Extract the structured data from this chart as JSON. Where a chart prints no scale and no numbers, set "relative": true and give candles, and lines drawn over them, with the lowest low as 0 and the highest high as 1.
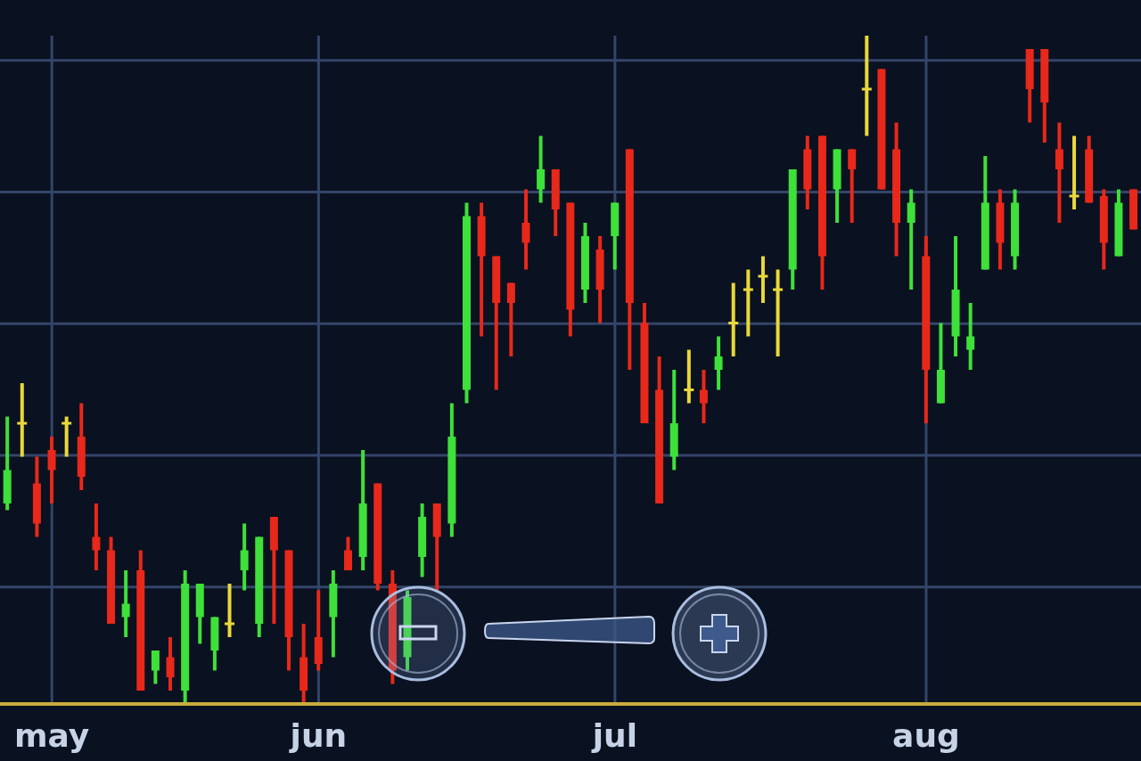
{
  "chart_data": {
    "type": "candlestick",
    "relative": true,
    "grid": true,
    "categories": [
      null,
      null,
      null,
      "may",
      null,
      null,
      null,
      null,
      null,
      null,
      null,
      null,
      null,
      null,
      null,
      null,
      null,
      null,
      null,
      null,
      null,
      "jun",
      null,
      null,
      null,
      null,
      null,
      null,
      null,
      null,
      null,
      null,
      null,
      null,
      null,
      null,
      null,
      null,
      null,
      null,
      null,
      "jul",
      null,
      null,
      null,
      null,
      null,
      null,
      null,
      null,
      null,
      null,
      null,
      null,
      null,
      null,
      null,
      null,
      null,
      null,
      null,
      null,
      "aug",
      null,
      null,
      null,
      null,
      null,
      null,
      null,
      null,
      null,
      null,
      null,
      null,
      null,
      null
    ],
    "ohlc": [
      [
        0.3,
        0.43,
        0.29,
        0.35
      ],
      [
        0.42,
        0.48,
        0.37,
        0.42
      ],
      [
        0.33,
        0.37,
        0.25,
        0.27
      ],
      [
        0.38,
        0.4,
        0.3,
        0.35
      ],
      [
        0.42,
        0.43,
        0.37,
        0.42
      ],
      [
        0.4,
        0.45,
        0.32,
        0.34
      ],
      [
        0.25,
        0.3,
        0.2,
        0.23
      ],
      [
        0.23,
        0.25,
        0.12,
        0.12
      ],
      [
        0.13,
        0.2,
        0.1,
        0.15
      ],
      [
        0.2,
        0.23,
        0.02,
        0.02
      ],
      [
        0.05,
        0.08,
        0.03,
        0.08
      ],
      [
        0.07,
        0.1,
        0.02,
        0.04
      ],
      [
        0.02,
        0.2,
        0,
        0.18
      ],
      [
        0.13,
        0.18,
        0.09,
        0.18
      ],
      [
        0.08,
        0.13,
        0.05,
        0.13
      ],
      [
        0.12,
        0.18,
        0.1,
        0.12
      ],
      [
        0.2,
        0.27,
        0.17,
        0.23
      ],
      [
        0.12,
        0.25,
        0.1,
        0.25
      ],
      [
        0.28,
        0.28,
        0.12,
        0.23
      ],
      [
        0.23,
        0.23,
        0.05,
        0.1
      ],
      [
        0.07,
        0.12,
        0,
        0.02
      ],
      [
        0.1,
        0.17,
        0.05,
        0.06
      ],
      [
        0.13,
        0.2,
        0.07,
        0.18
      ],
      [
        0.23,
        0.25,
        0.2,
        0.2
      ],
      [
        0.22,
        0.38,
        0.2,
        0.3
      ],
      [
        0.33,
        0.33,
        0.17,
        0.18
      ],
      [
        0.18,
        0.2,
        0.03,
        0.05
      ],
      [
        0.07,
        0.17,
        0.05,
        0.16
      ],
      [
        0.22,
        0.3,
        0.19,
        0.28
      ],
      [
        0.3,
        0.3,
        0.17,
        0.25
      ],
      [
        0.27,
        0.45,
        0.25,
        0.4
      ],
      [
        0.47,
        0.75,
        0.45,
        0.73
      ],
      [
        0.73,
        0.75,
        0.55,
        0.67
      ],
      [
        0.67,
        0.67,
        0.47,
        0.6
      ],
      [
        0.63,
        0.63,
        0.52,
        0.6
      ],
      [
        0.72,
        0.77,
        0.65,
        0.69
      ],
      [
        0.77,
        0.85,
        0.75,
        0.8
      ],
      [
        0.8,
        0.8,
        0.7,
        0.74
      ],
      [
        0.75,
        0.75,
        0.55,
        0.59
      ],
      [
        0.62,
        0.72,
        0.6,
        0.7
      ],
      [
        0.68,
        0.7,
        0.57,
        0.62
      ],
      [
        0.7,
        0.75,
        0.65,
        0.75
      ],
      [
        0.83,
        0.83,
        0.5,
        0.6
      ],
      [
        0.57,
        0.6,
        0.42,
        0.42
      ],
      [
        0.47,
        0.52,
        0.3,
        0.3
      ],
      [
        0.37,
        0.5,
        0.35,
        0.42
      ],
      [
        0.47,
        0.53,
        0.45,
        0.47
      ],
      [
        0.47,
        0.5,
        0.42,
        0.45
      ],
      [
        0.5,
        0.55,
        0.47,
        0.52
      ],
      [
        0.57,
        0.63,
        0.52,
        0.57
      ],
      [
        0.62,
        0.65,
        0.55,
        0.62
      ],
      [
        0.64,
        0.67,
        0.6,
        0.64
      ],
      [
        0.62,
        0.65,
        0.52,
        0.62
      ],
      [
        0.65,
        0.8,
        0.62,
        0.8
      ],
      [
        0.83,
        0.85,
        0.74,
        0.77
      ],
      [
        0.85,
        0.85,
        0.62,
        0.67
      ],
      [
        0.77,
        0.83,
        0.72,
        0.83
      ],
      [
        0.83,
        0.83,
        0.72,
        0.8
      ],
      [
        0.92,
        1,
        0.85,
        0.92
      ],
      [
        0.95,
        0.95,
        0.77,
        0.77
      ],
      [
        0.83,
        0.87,
        0.67,
        0.72
      ],
      [
        0.72,
        0.77,
        0.62,
        0.75
      ],
      [
        0.67,
        0.7,
        0.42,
        0.5
      ],
      [
        0.45,
        0.57,
        0.45,
        0.5
      ],
      [
        0.55,
        0.7,
        0.52,
        0.62
      ],
      [
        0.53,
        0.6,
        0.5,
        0.55
      ],
      [
        0.65,
        0.82,
        0.65,
        0.75
      ],
      [
        0.75,
        0.77,
        0.65,
        0.69
      ],
      [
        0.67,
        0.77,
        0.65,
        0.75
      ],
      [
        0.98,
        0.98,
        0.87,
        0.92
      ],
      [
        0.98,
        0.98,
        0.84,
        0.9
      ],
      [
        0.83,
        0.87,
        0.72,
        0.8
      ],
      [
        0.76,
        0.85,
        0.74,
        0.76
      ],
      [
        0.83,
        0.85,
        0.75,
        0.75
      ],
      [
        0.76,
        0.77,
        0.65,
        0.69
      ],
      [
        0.67,
        0.77,
        0.67,
        0.75
      ],
      [
        0.77,
        0.77,
        0.71,
        0.71
      ]
    ],
    "colors": [
      "#3ee03a",
      "#e8d83a",
      "#e8281a",
      "#e8281a",
      "#e8d83a",
      "#e8281a",
      "#e8281a",
      "#e8281a",
      "#3ee03a",
      "#e8281a",
      "#3ee03a",
      "#e8281a",
      "#3ee03a",
      "#3ee03a",
      "#3ee03a",
      "#e8d83a",
      "#3ee03a",
      "#3ee03a",
      "#e8281a",
      "#e8281a",
      "#e8281a",
      "#e8281a",
      "#3ee03a",
      "#e8281a",
      "#3ee03a",
      "#e8281a",
      "#e8281a",
      "#3ee03a",
      "#3ee03a",
      "#e8281a",
      "#3ee03a",
      "#3ee03a",
      "#e8281a",
      "#e8281a",
      "#e8281a",
      "#e8281a",
      "#3ee03a",
      "#e8281a",
      "#e8281a",
      "#3ee03a",
      "#e8281a",
      "#3ee03a",
      "#e8281a",
      "#e8281a",
      "#e8281a",
      "#3ee03a",
      "#e8d83a",
      "#e8281a",
      "#3ee03a",
      "#e8d83a",
      "#e8d83a",
      "#e8d83a",
      "#e8d83a",
      "#3ee03a",
      "#e8281a",
      "#e8281a",
      "#3ee03a",
      "#e8281a",
      "#e8d83a",
      "#e8281a",
      "#e8281a",
      "#3ee03a",
      "#e8281a",
      "#3ee03a",
      "#3ee03a",
      "#3ee03a",
      "#3ee03a",
      "#e8281a",
      "#3ee03a",
      "#e8281a",
      "#e8281a",
      "#e8281a",
      "#e8d83a",
      "#e8281a",
      "#e8281a",
      "#3ee03a",
      "#e8281a"
    ]
  }
}
